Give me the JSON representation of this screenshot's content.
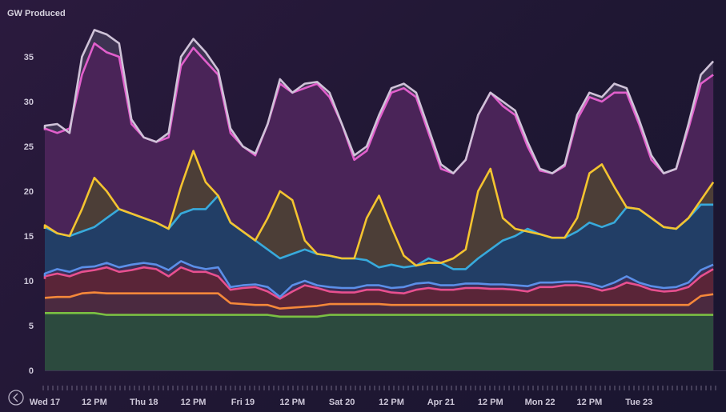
{
  "chart_data": {
    "type": "area",
    "ylabel": "GW Produced",
    "ylim": [
      0,
      38
    ],
    "yticks": [
      0,
      5,
      10,
      15,
      20,
      25,
      30,
      35
    ],
    "xlim": [
      0,
      28
    ],
    "xticks": [
      {
        "x": 0,
        "label": "Wed 17"
      },
      {
        "x": 2,
        "label": "12 PM"
      },
      {
        "x": 4,
        "label": "Thu 18"
      },
      {
        "x": 6,
        "label": "12 PM"
      },
      {
        "x": 8,
        "label": "Fri 19"
      },
      {
        "x": 10,
        "label": "12 PM"
      },
      {
        "x": 12,
        "label": "Sat 20"
      },
      {
        "x": 14,
        "label": "12 PM"
      },
      {
        "x": 16,
        "label": "Apr 21"
      },
      {
        "x": 18,
        "label": "12 PM"
      },
      {
        "x": 20,
        "label": "Mon 22"
      },
      {
        "x": 22,
        "label": "12 PM"
      },
      {
        "x": 24,
        "label": "Tue 23"
      }
    ],
    "x": [
      -0.3,
      0.0,
      0.5,
      1.0,
      1.5,
      2.0,
      2.5,
      3.0,
      3.5,
      4.0,
      4.5,
      5.0,
      5.5,
      6.0,
      6.5,
      7.0,
      7.5,
      8.0,
      8.5,
      9.0,
      9.5,
      10.0,
      10.5,
      11.0,
      11.5,
      12.0,
      12.5,
      13.0,
      13.5,
      14.0,
      14.5,
      15.0,
      15.5,
      16.0,
      16.5,
      17.0,
      17.5,
      18.0,
      18.5,
      19.0,
      19.5,
      20.0,
      20.5,
      21.0,
      21.5,
      22.0,
      22.5,
      23.0,
      23.5,
      24.0,
      24.5,
      25.0,
      25.5,
      26.0,
      26.5,
      27.0
    ],
    "series": [
      {
        "color": "#7bc043",
        "fill": "#2c4a3e",
        "values": [
          6.4,
          6.4,
          6.4,
          6.4,
          6.4,
          6.4,
          6.2,
          6.2,
          6.2,
          6.2,
          6.2,
          6.2,
          6.2,
          6.2,
          6.2,
          6.2,
          6.2,
          6.2,
          6.2,
          6.2,
          6.0,
          6.0,
          6.0,
          6.0,
          6.2,
          6.2,
          6.2,
          6.2,
          6.2,
          6.2,
          6.2,
          6.2,
          6.2,
          6.2,
          6.2,
          6.2,
          6.2,
          6.2,
          6.2,
          6.2,
          6.2,
          6.2,
          6.2,
          6.2,
          6.2,
          6.2,
          6.2,
          6.2,
          6.2,
          6.2,
          6.2,
          6.2,
          6.2,
          6.2,
          6.2,
          6.2
        ]
      },
      {
        "color": "#f5883a",
        "fill": "#4b2a40",
        "values": [
          8.1,
          8.1,
          8.2,
          8.2,
          8.6,
          8.7,
          8.6,
          8.6,
          8.6,
          8.6,
          8.6,
          8.6,
          8.6,
          8.6,
          8.6,
          8.6,
          7.5,
          7.4,
          7.3,
          7.3,
          6.9,
          7.0,
          7.1,
          7.2,
          7.4,
          7.4,
          7.4,
          7.4,
          7.4,
          7.3,
          7.3,
          7.3,
          7.3,
          7.3,
          7.3,
          7.3,
          7.3,
          7.3,
          7.3,
          7.3,
          7.3,
          7.3,
          7.3,
          7.3,
          7.3,
          7.3,
          7.3,
          7.3,
          7.3,
          7.3,
          7.3,
          7.3,
          7.3,
          7.3,
          8.3,
          8.5
        ]
      },
      {
        "color": "#e8508f",
        "fill": "#5a2538",
        "values": [
          10.2,
          10.5,
          10.8,
          10.5,
          11.0,
          11.2,
          11.5,
          11.0,
          11.2,
          11.5,
          11.3,
          10.5,
          11.5,
          11.0,
          11.0,
          10.5,
          9.0,
          9.2,
          9.3,
          8.8,
          8.0,
          8.8,
          9.5,
          9.2,
          8.8,
          8.7,
          8.7,
          9.0,
          9.0,
          8.7,
          8.6,
          9.0,
          9.2,
          9.0,
          9.0,
          9.2,
          9.2,
          9.1,
          9.1,
          9.0,
          8.8,
          9.3,
          9.3,
          9.5,
          9.5,
          9.3,
          8.9,
          9.2,
          9.8,
          9.5,
          9.0,
          8.8,
          8.9,
          9.3,
          10.5,
          11.3
        ]
      },
      {
        "color": "#5b8fe8",
        "fill": "#3b2f58",
        "values": [
          10.5,
          10.8,
          11.3,
          11.0,
          11.5,
          11.6,
          12.0,
          11.5,
          11.8,
          12.0,
          11.8,
          11.2,
          12.2,
          11.6,
          11.3,
          11.5,
          9.3,
          9.5,
          9.6,
          9.3,
          8.2,
          9.5,
          10.0,
          9.5,
          9.3,
          9.2,
          9.2,
          9.5,
          9.5,
          9.2,
          9.3,
          9.7,
          9.8,
          9.5,
          9.5,
          9.7,
          9.7,
          9.6,
          9.6,
          9.5,
          9.4,
          9.8,
          9.8,
          9.9,
          9.9,
          9.7,
          9.3,
          9.8,
          10.5,
          9.8,
          9.4,
          9.2,
          9.3,
          9.8,
          11.2,
          11.8
        ]
      },
      {
        "color": "#38aadc",
        "fill": "#223e66",
        "values": [
          15.8,
          16.0,
          15.3,
          15.0,
          15.5,
          16.0,
          17.0,
          18.0,
          17.5,
          17.0,
          16.5,
          15.8,
          17.5,
          18.0,
          18.0,
          19.5,
          16.5,
          15.5,
          14.5,
          13.5,
          12.5,
          13.0,
          13.5,
          13.0,
          12.8,
          12.5,
          12.5,
          12.3,
          11.5,
          11.8,
          11.5,
          11.7,
          12.5,
          12.0,
          11.3,
          11.3,
          12.5,
          13.5,
          14.5,
          15.0,
          15.8,
          15.2,
          14.8,
          14.8,
          15.5,
          16.5,
          16.0,
          16.5,
          18.2,
          18.0,
          17.0,
          16.0,
          15.8,
          17.0,
          18.5,
          18.5
        ]
      },
      {
        "color": "#f4c430",
        "fill": "#4c3e37",
        "values": [
          15.8,
          16.2,
          15.3,
          15.0,
          18.0,
          21.5,
          20.0,
          18.0,
          17.5,
          17.0,
          16.5,
          15.8,
          20.5,
          24.5,
          21.0,
          19.5,
          16.5,
          15.5,
          14.5,
          17.0,
          20.0,
          19.0,
          14.5,
          13.0,
          12.8,
          12.5,
          12.5,
          17.0,
          19.5,
          16.0,
          12.8,
          11.7,
          12.0,
          12.0,
          12.5,
          13.5,
          20.0,
          22.5,
          17.0,
          15.8,
          15.5,
          15.2,
          14.8,
          14.8,
          17.0,
          22.0,
          23.0,
          20.5,
          18.2,
          18.0,
          17.0,
          16.0,
          15.8,
          17.0,
          19.0,
          21.0
        ]
      },
      {
        "color": "#e15fcc",
        "fill": "#4a2458",
        "values": [
          26.8,
          27.0,
          26.5,
          27.0,
          33.0,
          36.5,
          35.5,
          35.0,
          27.5,
          26.0,
          25.5,
          26.0,
          34.0,
          36.0,
          34.5,
          33.0,
          26.5,
          25.0,
          24.0,
          27.5,
          32.0,
          31.0,
          31.5,
          32.0,
          30.5,
          27.5,
          23.5,
          24.5,
          28.0,
          31.0,
          31.5,
          30.5,
          26.5,
          22.5,
          22.0,
          23.5,
          28.5,
          31.0,
          29.5,
          28.5,
          25.0,
          22.3,
          22.0,
          22.8,
          28.0,
          30.5,
          30.0,
          31.0,
          31.0,
          27.5,
          23.5,
          22.0,
          22.5,
          27.0,
          32.0,
          33.0
        ]
      },
      {
        "color": "#cfc3d8",
        "fill": "#3e3352",
        "values": [
          27.0,
          27.3,
          27.5,
          26.5,
          35.0,
          38.0,
          37.5,
          36.5,
          28.0,
          26.0,
          25.5,
          26.5,
          35.0,
          37.0,
          35.5,
          33.5,
          27.0,
          25.0,
          24.2,
          27.5,
          32.5,
          31.0,
          32.0,
          32.2,
          31.0,
          27.5,
          24.0,
          25.0,
          28.5,
          31.5,
          32.0,
          31.0,
          27.0,
          23.0,
          22.0,
          23.5,
          28.5,
          31.0,
          30.0,
          29.0,
          25.5,
          22.5,
          22.0,
          23.0,
          28.5,
          31.0,
          30.5,
          32.0,
          31.5,
          28.0,
          24.0,
          22.0,
          22.5,
          27.5,
          33.0,
          34.5
        ]
      }
    ]
  }
}
